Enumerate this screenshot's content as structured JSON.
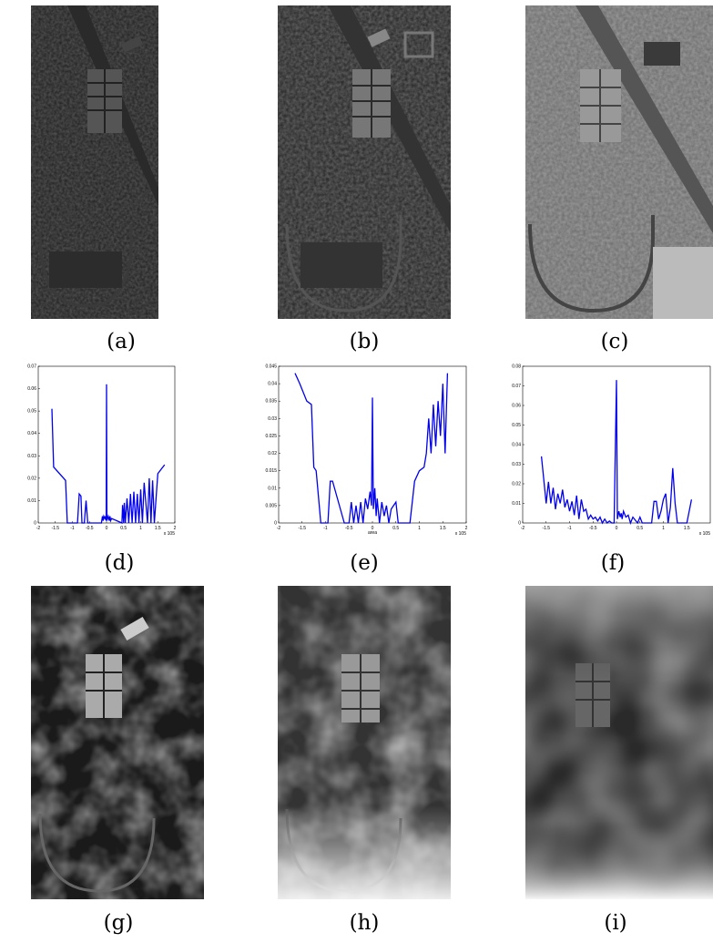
{
  "figure": {
    "captions": [
      "(a)",
      "(b)",
      "(c)",
      "(d)",
      "(e)",
      "(f)",
      "(g)",
      "(h)",
      "(i)"
    ]
  },
  "colors": {
    "line": "#0000ee",
    "axis": "#000000"
  },
  "chart_data": [
    {
      "type": "line",
      "caption": "(d)",
      "xlim": [
        -2,
        2
      ],
      "ylim": [
        0,
        0.07
      ],
      "xticks": [
        "-2",
        "-1.5",
        "-1",
        "-0.5",
        "0",
        "0.5",
        "1",
        "1.5",
        "2"
      ],
      "yticks": [
        "0.01",
        "0.02",
        "0.03",
        "0.04",
        "0.05",
        "0.06",
        "0.07"
      ],
      "x_exponent": "x 10^5",
      "xlabel": "",
      "series": [
        {
          "x": [
            -1.6,
            -1.55,
            -1.2,
            -1.15,
            -0.85,
            -0.8,
            -0.75,
            -0.72,
            -0.65,
            -0.6,
            -0.55,
            -0.5,
            -0.48,
            -0.15,
            -0.12,
            -0.1,
            -0.08,
            -0.05,
            -0.03,
            -0.01,
            0.0,
            0.01,
            0.03,
            0.05,
            0.08,
            0.1,
            0.12,
            0.15,
            0.45,
            0.47,
            0.5,
            0.52,
            0.55,
            0.6,
            0.65,
            0.7,
            0.75,
            0.8,
            0.85,
            0.9,
            0.95,
            1.0,
            1.05,
            1.1,
            1.2,
            1.25,
            1.3,
            1.35,
            1.4,
            1.5,
            1.6,
            1.7
          ],
          "y": [
            0.051,
            0.025,
            0.019,
            0.0,
            0.0,
            0.013,
            0.012,
            0.0,
            0.0,
            0.01,
            0.0,
            0.0,
            0.0,
            0.0,
            0.003,
            0.001,
            0.003,
            0.002,
            0.003,
            0.001,
            0.062,
            0.001,
            0.002,
            0.003,
            0.001,
            0.003,
            0.001,
            0.002,
            0.0,
            0.008,
            0.0,
            0.009,
            0.0,
            0.011,
            0.0,
            0.013,
            0.0,
            0.014,
            0.0,
            0.013,
            0.0,
            0.015,
            0.0,
            0.018,
            0.0,
            0.02,
            0.0,
            0.019,
            0.0,
            0.022,
            0.024,
            0.026
          ]
        }
      ]
    },
    {
      "type": "line",
      "caption": "(e)",
      "xlim": [
        -2,
        2
      ],
      "ylim": [
        0,
        0.045
      ],
      "xticks": [
        "-2",
        "-1.5",
        "-1",
        "-0.5",
        "0",
        "0.5",
        "1",
        "1.5",
        "2"
      ],
      "yticks": [
        "0.005",
        "0.01",
        "0.015",
        "0.02",
        "0.025",
        "0.03",
        "0.035",
        "0.04",
        "0.045"
      ],
      "x_exponent": "x 10^5",
      "xlabel": "area",
      "series": [
        {
          "x": [
            -1.65,
            -1.55,
            -1.4,
            -1.3,
            -1.25,
            -1.2,
            -1.1,
            -0.95,
            -0.9,
            -0.85,
            -0.6,
            -0.55,
            -0.5,
            -0.45,
            -0.4,
            -0.35,
            -0.3,
            -0.25,
            -0.2,
            -0.15,
            -0.1,
            -0.05,
            -0.02,
            0.0,
            0.02,
            0.05,
            0.08,
            0.1,
            0.15,
            0.2,
            0.25,
            0.3,
            0.35,
            0.4,
            0.45,
            0.5,
            0.55,
            0.6,
            0.65,
            0.8,
            0.9,
            1.0,
            1.1,
            1.15,
            1.2,
            1.25,
            1.3,
            1.35,
            1.4,
            1.45,
            1.5,
            1.55,
            1.6
          ],
          "y": [
            0.043,
            0.04,
            0.035,
            0.034,
            0.016,
            0.015,
            0.0,
            0.0,
            0.012,
            0.012,
            0.0,
            0.0,
            0.0,
            0.006,
            0.0,
            0.005,
            0.0,
            0.006,
            0.0,
            0.007,
            0.004,
            0.009,
            0.005,
            0.036,
            0.004,
            0.01,
            0.002,
            0.007,
            0.0,
            0.006,
            0.002,
            0.005,
            0.0,
            0.004,
            0.005,
            0.006,
            0.0,
            0.0,
            0.0,
            0.0,
            0.012,
            0.015,
            0.016,
            0.02,
            0.03,
            0.02,
            0.034,
            0.022,
            0.035,
            0.025,
            0.04,
            0.02,
            0.043
          ]
        }
      ]
    },
    {
      "type": "line",
      "caption": "(f)",
      "xlim": [
        -2,
        2
      ],
      "ylim": [
        0,
        0.08
      ],
      "xticks": [
        "-2",
        "-1.5",
        "-1",
        "-0.5",
        "0",
        "0.5",
        "1",
        "1.5"
      ],
      "yticks": [
        "0.01",
        "0.02",
        "0.03",
        "0.04",
        "0.05",
        "0.06",
        "0.07",
        "0.08"
      ],
      "x_exponent": "x 10^5",
      "xlabel": "",
      "series": [
        {
          "x": [
            -1.6,
            -1.5,
            -1.45,
            -1.4,
            -1.35,
            -1.3,
            -1.25,
            -1.2,
            -1.15,
            -1.1,
            -1.05,
            -1.0,
            -0.95,
            -0.9,
            -0.85,
            -0.8,
            -0.75,
            -0.7,
            -0.65,
            -0.6,
            -0.55,
            -0.5,
            -0.45,
            -0.4,
            -0.35,
            -0.3,
            -0.25,
            -0.2,
            -0.15,
            -0.1,
            -0.05,
            0.0,
            0.02,
            0.05,
            0.08,
            0.1,
            0.12,
            0.15,
            0.2,
            0.25,
            0.3,
            0.35,
            0.45,
            0.5,
            0.55,
            0.6,
            0.65,
            0.7,
            0.75,
            0.8,
            0.85,
            0.9,
            0.95,
            1.0,
            1.05,
            1.1,
            1.15,
            1.2,
            1.25,
            1.3,
            1.35,
            1.4,
            1.5,
            1.6
          ],
          "y": [
            0.034,
            0.01,
            0.021,
            0.01,
            0.018,
            0.007,
            0.015,
            0.01,
            0.017,
            0.008,
            0.012,
            0.006,
            0.011,
            0.004,
            0.014,
            0.002,
            0.012,
            0.006,
            0.007,
            0.002,
            0.004,
            0.002,
            0.003,
            0.001,
            0.003,
            0.0,
            0.002,
            0.0,
            0.001,
            0.0,
            0.0,
            0.073,
            0.002,
            0.006,
            0.003,
            0.005,
            0.002,
            0.006,
            0.003,
            0.004,
            0.0,
            0.003,
            0.0,
            0.003,
            0.0,
            0.0,
            0.0,
            0.0,
            0.0,
            0.011,
            0.011,
            0.002,
            0.006,
            0.012,
            0.015,
            0.0,
            0.008,
            0.028,
            0.01,
            0.0,
            0.0,
            0.0,
            0.0,
            0.012
          ]
        }
      ]
    }
  ]
}
